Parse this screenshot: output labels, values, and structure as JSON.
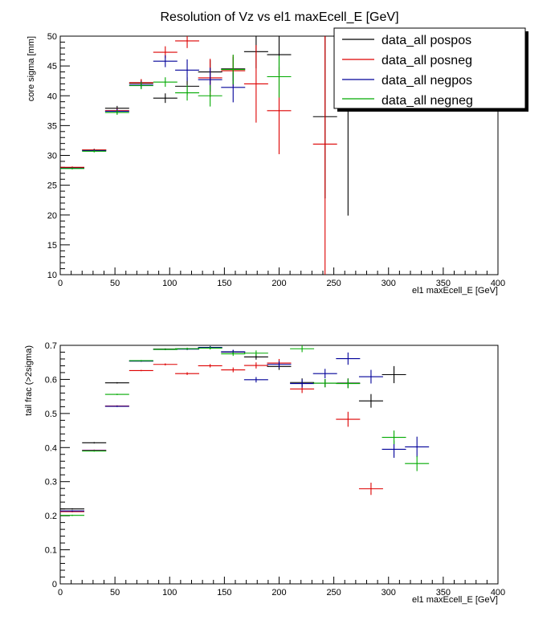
{
  "title": "Resolution of Vz vs  el1 maxEcell_E [GeV]",
  "colors": {
    "pospos": "#000000",
    "posneg": "#dd0000",
    "negpos": "#000099",
    "negneg": "#00aa00"
  },
  "legend": {
    "entries": [
      {
        "key": "pospos",
        "label": "data_all pospos"
      },
      {
        "key": "posneg",
        "label": "data_all posneg"
      },
      {
        "key": "negpos",
        "label": "data_all negpos"
      },
      {
        "key": "negneg",
        "label": "data_all negneg"
      }
    ]
  },
  "chart_data": [
    {
      "type": "scatter",
      "name": "core-sigma",
      "title": "Resolution of Vz vs  el1 maxEcell_E [GeV]",
      "xlabel": "el1 maxEcell_E [GeV]",
      "ylabel": "core sigma [mm]",
      "xlim": [
        0,
        400
      ],
      "ylim": [
        10,
        50
      ],
      "xticks": [
        0,
        50,
        100,
        150,
        200,
        250,
        300,
        350,
        400
      ],
      "yticks": [
        10,
        15,
        20,
        25,
        30,
        35,
        40,
        45,
        50
      ],
      "series": [
        {
          "key": "pospos",
          "name": "data_all pospos",
          "points": [
            {
              "x": 11,
              "xe": 11,
              "y": 27.9,
              "ye": 0.15
            },
            {
              "x": 31,
              "xe": 11,
              "y": 30.9,
              "ye": 0.2
            },
            {
              "x": 52,
              "xe": 11,
              "y": 37.9,
              "ye": 0.4
            },
            {
              "x": 74,
              "xe": 11,
              "y": 42.1,
              "ye": 0.6
            },
            {
              "x": 96,
              "xe": 11,
              "y": 39.6,
              "ye": 0.8
            },
            {
              "x": 116,
              "xe": 11,
              "y": 41.6,
              "ye": 1.5
            },
            {
              "x": 137,
              "xe": 11,
              "y": 44.0,
              "ye": 2.0
            },
            {
              "x": 158,
              "xe": 11,
              "y": 44.5,
              "ye": 2.0
            },
            {
              "x": 179,
              "xe": 11,
              "y": 47.4,
              "ye": 2.8
            },
            {
              "x": 200,
              "xe": 11,
              "y": 46.9,
              "ye": 3.4
            },
            {
              "x": 242,
              "xe": 11,
              "y": 36.5,
              "ye": 13.7
            },
            {
              "x": 263,
              "xe": 0,
              "y": 36.5,
              "ye": 16.6
            }
          ]
        },
        {
          "key": "posneg",
          "name": "data_all posneg",
          "points": [
            {
              "x": 11,
              "xe": 11,
              "y": 28.0,
              "ye": 0.15
            },
            {
              "x": 31,
              "xe": 11,
              "y": 30.9,
              "ye": 0.2
            },
            {
              "x": 52,
              "xe": 11,
              "y": 37.5,
              "ye": 0.4
            },
            {
              "x": 74,
              "xe": 11,
              "y": 42.2,
              "ye": 0.6
            },
            {
              "x": 96,
              "xe": 11,
              "y": 47.3,
              "ye": 1.0
            },
            {
              "x": 116,
              "xe": 11,
              "y": 49.2,
              "ye": 1.2
            },
            {
              "x": 137,
              "xe": 11,
              "y": 43.0,
              "ye": 3.2
            },
            {
              "x": 158,
              "xe": 11,
              "y": 44.2,
              "ye": 2.6
            },
            {
              "x": 179,
              "xe": 11,
              "y": 42.0,
              "ye": 6.5
            },
            {
              "x": 200,
              "xe": 11,
              "y": 37.5,
              "ye": 7.3
            },
            {
              "x": 242,
              "xe": 11,
              "y": 31.9,
              "ye": 22.0
            }
          ]
        },
        {
          "key": "negpos",
          "name": "data_all negpos",
          "points": [
            {
              "x": 11,
              "xe": 11,
              "y": 27.85,
              "ye": 0.15
            },
            {
              "x": 31,
              "xe": 11,
              "y": 30.8,
              "ye": 0.2
            },
            {
              "x": 52,
              "xe": 11,
              "y": 37.4,
              "ye": 0.4
            },
            {
              "x": 74,
              "xe": 11,
              "y": 41.8,
              "ye": 0.6
            },
            {
              "x": 96,
              "xe": 11,
              "y": 45.8,
              "ye": 1.0
            },
            {
              "x": 116,
              "xe": 11,
              "y": 44.3,
              "ye": 1.8
            },
            {
              "x": 137,
              "xe": 11,
              "y": 42.7,
              "ye": 2.0
            },
            {
              "x": 158,
              "xe": 11,
              "y": 41.4,
              "ye": 2.5
            }
          ]
        },
        {
          "key": "negneg",
          "name": "data_all negneg",
          "points": [
            {
              "x": 11,
              "xe": 11,
              "y": 27.8,
              "ye": 0.15
            },
            {
              "x": 31,
              "xe": 11,
              "y": 30.7,
              "ye": 0.2
            },
            {
              "x": 52,
              "xe": 11,
              "y": 37.2,
              "ye": 0.4
            },
            {
              "x": 74,
              "xe": 11,
              "y": 41.7,
              "ye": 0.6
            },
            {
              "x": 96,
              "xe": 11,
              "y": 42.3,
              "ye": 0.8
            },
            {
              "x": 116,
              "xe": 11,
              "y": 40.5,
              "ye": 1.3
            },
            {
              "x": 137,
              "xe": 11,
              "y": 40.0,
              "ye": 1.8
            },
            {
              "x": 158,
              "xe": 11,
              "y": 44.4,
              "ye": 2.5
            },
            {
              "x": 200,
              "xe": 11,
              "y": 43.2,
              "ye": 3.5
            }
          ]
        }
      ]
    },
    {
      "type": "scatter",
      "name": "tail-frac",
      "title": "",
      "xlabel": "el1 maxEcell_E [GeV]",
      "ylabel": "tail frac (>2sigma)",
      "xlim": [
        0,
        400
      ],
      "ylim": [
        0,
        0.7
      ],
      "xticks": [
        0,
        50,
        100,
        150,
        200,
        250,
        300,
        350,
        400
      ],
      "yticks": [
        0,
        0.1,
        0.2,
        0.3,
        0.4,
        0.5,
        0.6,
        0.7
      ],
      "ytick_labels": [
        "0",
        "0.1",
        "0.2",
        "0.3",
        "0.4",
        "0.5",
        "0.6",
        "0.7"
      ],
      "series": [
        {
          "key": "pospos",
          "name": "data_all pospos",
          "points": [
            {
              "x": 11,
              "xe": 11,
              "y": 0.22,
              "ye": 0.002
            },
            {
              "x": 31,
              "xe": 11,
              "y": 0.414,
              "ye": 0.002
            },
            {
              "x": 52,
              "xe": 11,
              "y": 0.59,
              "ye": 0.002
            },
            {
              "x": 74,
              "xe": 11,
              "y": 0.654,
              "ye": 0.002
            },
            {
              "x": 96,
              "xe": 11,
              "y": 0.689,
              "ye": 0.002
            },
            {
              "x": 116,
              "xe": 11,
              "y": 0.69,
              "ye": 0.003
            },
            {
              "x": 137,
              "xe": 11,
              "y": 0.693,
              "ye": 0.004
            },
            {
              "x": 158,
              "xe": 11,
              "y": 0.68,
              "ye": 0.006
            },
            {
              "x": 179,
              "xe": 11,
              "y": 0.666,
              "ye": 0.008
            },
            {
              "x": 200,
              "xe": 11,
              "y": 0.638,
              "ye": 0.01
            },
            {
              "x": 221,
              "xe": 11,
              "y": 0.591,
              "ye": 0.012
            },
            {
              "x": 242,
              "xe": 11,
              "y": 0.589,
              "ye": 0.012
            },
            {
              "x": 263,
              "xe": 11,
              "y": 0.589,
              "ye": 0.014
            },
            {
              "x": 284,
              "xe": 11,
              "y": 0.537,
              "ye": 0.02
            },
            {
              "x": 305,
              "xe": 11,
              "y": 0.614,
              "ye": 0.025
            }
          ]
        },
        {
          "key": "posneg",
          "name": "data_all posneg",
          "points": [
            {
              "x": 11,
              "xe": 11,
              "y": 0.212,
              "ye": 0.002
            },
            {
              "x": 31,
              "xe": 11,
              "y": 0.392,
              "ye": 0.002
            },
            {
              "x": 52,
              "xe": 11,
              "y": 0.522,
              "ye": 0.002
            },
            {
              "x": 74,
              "xe": 11,
              "y": 0.626,
              "ye": 0.002
            },
            {
              "x": 96,
              "xe": 11,
              "y": 0.644,
              "ye": 0.003
            },
            {
              "x": 116,
              "xe": 11,
              "y": 0.617,
              "ye": 0.004
            },
            {
              "x": 137,
              "xe": 11,
              "y": 0.64,
              "ye": 0.005
            },
            {
              "x": 158,
              "xe": 11,
              "y": 0.628,
              "ye": 0.007
            },
            {
              "x": 179,
              "xe": 11,
              "y": 0.641,
              "ye": 0.009
            },
            {
              "x": 200,
              "xe": 11,
              "y": 0.648,
              "ye": 0.012
            },
            {
              "x": 221,
              "xe": 11,
              "y": 0.572,
              "ye": 0.012
            },
            {
              "x": 263,
              "xe": 11,
              "y": 0.483,
              "ye": 0.022
            },
            {
              "x": 284,
              "xe": 11,
              "y": 0.279,
              "ye": 0.018
            }
          ]
        },
        {
          "key": "negpos",
          "name": "data_all negpos",
          "points": [
            {
              "x": 11,
              "xe": 11,
              "y": 0.214,
              "ye": 0.002
            },
            {
              "x": 31,
              "xe": 11,
              "y": 0.391,
              "ye": 0.002
            },
            {
              "x": 52,
              "xe": 11,
              "y": 0.521,
              "ye": 0.002
            },
            {
              "x": 74,
              "xe": 11,
              "y": 0.654,
              "ye": 0.002
            },
            {
              "x": 96,
              "xe": 11,
              "y": 0.688,
              "ye": 0.002
            },
            {
              "x": 116,
              "xe": 11,
              "y": 0.689,
              "ye": 0.003
            },
            {
              "x": 137,
              "xe": 11,
              "y": 0.694,
              "ye": 0.004
            },
            {
              "x": 158,
              "xe": 11,
              "y": 0.681,
              "ye": 0.006
            },
            {
              "x": 179,
              "xe": 11,
              "y": 0.599,
              "ye": 0.008
            },
            {
              "x": 200,
              "xe": 11,
              "y": 0.644,
              "ye": 0.01
            },
            {
              "x": 221,
              "xe": 11,
              "y": 0.588,
              "ye": 0.012
            },
            {
              "x": 242,
              "xe": 11,
              "y": 0.617,
              "ye": 0.014
            },
            {
              "x": 263,
              "xe": 11,
              "y": 0.661,
              "ye": 0.018
            },
            {
              "x": 284,
              "xe": 11,
              "y": 0.608,
              "ye": 0.02
            },
            {
              "x": 305,
              "xe": 11,
              "y": 0.395,
              "ye": 0.025
            },
            {
              "x": 326,
              "xe": 11,
              "y": 0.402,
              "ye": 0.03
            }
          ]
        },
        {
          "key": "negneg",
          "name": "data_all negneg",
          "points": [
            {
              "x": 11,
              "xe": 11,
              "y": 0.201,
              "ye": 0.002
            },
            {
              "x": 31,
              "xe": 11,
              "y": 0.39,
              "ye": 0.002
            },
            {
              "x": 52,
              "xe": 11,
              "y": 0.556,
              "ye": 0.002
            },
            {
              "x": 74,
              "xe": 11,
              "y": 0.655,
              "ye": 0.002
            },
            {
              "x": 96,
              "xe": 11,
              "y": 0.688,
              "ye": 0.002
            },
            {
              "x": 116,
              "xe": 11,
              "y": 0.69,
              "ye": 0.003
            },
            {
              "x": 137,
              "xe": 11,
              "y": 0.692,
              "ye": 0.004
            },
            {
              "x": 158,
              "xe": 11,
              "y": 0.675,
              "ye": 0.006
            },
            {
              "x": 179,
              "xe": 11,
              "y": 0.677,
              "ye": 0.008
            },
            {
              "x": 221,
              "xe": 11,
              "y": 0.69,
              "ye": 0.01
            },
            {
              "x": 242,
              "xe": 11,
              "y": 0.589,
              "ye": 0.012
            },
            {
              "x": 263,
              "xe": 11,
              "y": 0.588,
              "ye": 0.014
            },
            {
              "x": 305,
              "xe": 11,
              "y": 0.43,
              "ye": 0.02
            },
            {
              "x": 326,
              "xe": 11,
              "y": 0.353,
              "ye": 0.022
            }
          ]
        }
      ]
    }
  ]
}
